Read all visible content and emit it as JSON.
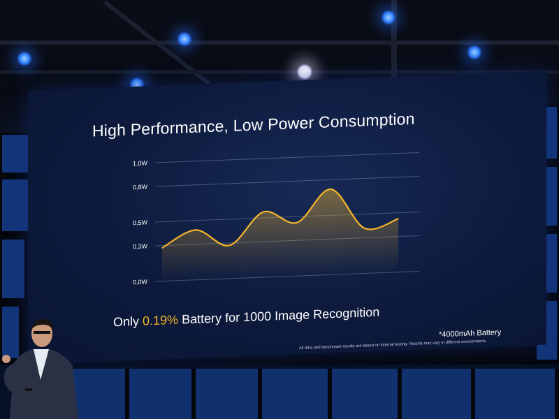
{
  "slide": {
    "title": "High Performance, Low Power Consumption",
    "stat_prefix": "Only ",
    "stat_highlight": "0.19%",
    "stat_suffix": " Battery for 1000 Image Recognition",
    "battery_note": "*4000mAh Battery",
    "disclaimer": "All data and benchmark results are based on internal testing. Results may vary in different environments."
  },
  "colors": {
    "accent": "#f5b52a",
    "screen_bg": "#0d1a3c",
    "text": "#ffffff",
    "stage_light": "#2e7dff"
  },
  "chart_data": {
    "type": "area",
    "title": "",
    "xlabel": "",
    "ylabel": "",
    "y_ticks": [
      "0,0W",
      "0,3W",
      "0,5W",
      "0,8W",
      "1,0W"
    ],
    "ylim": [
      0,
      1.0
    ],
    "grid": true,
    "series": [
      {
        "values": [
          0.28,
          0.42,
          0.28,
          0.55,
          0.45,
          0.72,
          0.38,
          0.45
        ]
      }
    ]
  }
}
